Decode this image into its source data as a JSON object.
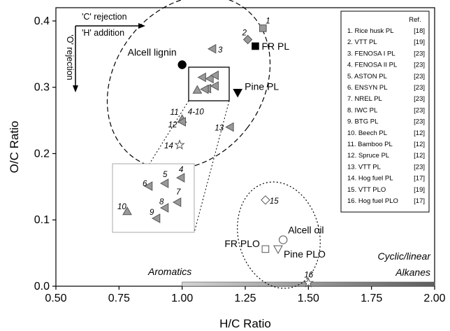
{
  "chart_data": {
    "type": "scatter",
    "xlabel": "H/C Ratio",
    "ylabel": "O/C Ratio",
    "xlim": [
      0.5,
      2.0
    ],
    "ylim": [
      0.0,
      0.42
    ],
    "xticks": [
      "0.50",
      "0.75",
      "1.00",
      "1.25",
      "1.50",
      "1.75",
      "2.00"
    ],
    "xtick_values": [
      0.5,
      0.75,
      1.0,
      1.25,
      1.5,
      1.75,
      2.0
    ],
    "yticks": [
      "0.0",
      "0.1",
      "0.2",
      "0.3",
      "0.4"
    ],
    "ytick_values": [
      0.0,
      0.1,
      0.2,
      0.3,
      0.4
    ],
    "grid": false,
    "points": [
      {
        "label": "1",
        "x": 1.32,
        "y": 0.389,
        "marker": "square",
        "fill": "#999999"
      },
      {
        "label": "2",
        "x": 1.26,
        "y": 0.372,
        "marker": "diamond",
        "fill": "#999999"
      },
      {
        "label": "3",
        "x": 1.12,
        "y": 0.358,
        "marker": "triangle-left",
        "fill": "#999999"
      },
      {
        "label": "11",
        "x": 1.0,
        "y": 0.252,
        "marker": "triangle-up",
        "fill": "#999999"
      },
      {
        "label": "12",
        "x": 1.0,
        "y": 0.248,
        "marker": "triangle-left",
        "fill": "#999999"
      },
      {
        "label": "13",
        "x": 1.19,
        "y": 0.24,
        "marker": "triangle-left",
        "fill": "#999999"
      },
      {
        "label": "14",
        "x": 0.99,
        "y": 0.213,
        "marker": "star",
        "fill": "#ffffff"
      },
      {
        "label": "15",
        "x": 1.33,
        "y": 0.13,
        "marker": "diamond",
        "fill": "#ffffff"
      },
      {
        "label": "16",
        "x": 1.5,
        "y": 0.005,
        "marker": "star",
        "fill": "#ffffff"
      },
      {
        "label": "4-10",
        "x": 1.1,
        "y": 0.298,
        "marker": "triangle-left",
        "fill": "#999999"
      },
      {
        "label": "",
        "x": 1.06,
        "y": 0.296,
        "marker": "triangle-up",
        "fill": "#999999"
      },
      {
        "label": "",
        "x": 1.09,
        "y": 0.297,
        "marker": "triangle-left",
        "fill": "#999999"
      },
      {
        "label": "",
        "x": 1.13,
        "y": 0.302,
        "marker": "triangle-left",
        "fill": "#999999"
      },
      {
        "label": "",
        "x": 1.11,
        "y": 0.313,
        "marker": "triangle-left",
        "fill": "#999999"
      },
      {
        "label": "",
        "x": 1.08,
        "y": 0.315,
        "marker": "triangle-left",
        "fill": "#999999"
      },
      {
        "label": "",
        "x": 1.13,
        "y": 0.318,
        "marker": "triangle-left",
        "fill": "#999999"
      }
    ],
    "named_points": [
      {
        "label": "FR PL",
        "x": 1.29,
        "y": 0.362,
        "marker": "square",
        "fill": "#000000"
      },
      {
        "label": "Alcell lignin",
        "x": 1.0,
        "y": 0.334,
        "marker": "circle",
        "fill": "#000000"
      },
      {
        "label": "Pine PL",
        "x": 1.22,
        "y": 0.292,
        "marker": "triangle-down",
        "fill": "#000000"
      },
      {
        "label": "Alcell oil",
        "x": 1.4,
        "y": 0.07,
        "marker": "circle",
        "fill": "#ffffff"
      },
      {
        "label": "FR PLO",
        "x": 1.33,
        "y": 0.056,
        "marker": "square",
        "fill": "#ffffff"
      },
      {
        "label": "Pine PLO",
        "x": 1.38,
        "y": 0.056,
        "marker": "triangle-down",
        "fill": "#ffffff"
      }
    ],
    "inset_points": [
      {
        "label": "4",
        "marker": "triangle-left",
        "fill": "#999999"
      },
      {
        "label": "5",
        "marker": "triangle-left",
        "fill": "#999999"
      },
      {
        "label": "6",
        "marker": "triangle-left",
        "fill": "#999999"
      },
      {
        "label": "7",
        "marker": "triangle-left",
        "fill": "#999999"
      },
      {
        "label": "8",
        "marker": "triangle-left",
        "fill": "#999999"
      },
      {
        "label": "9",
        "marker": "triangle-left",
        "fill": "#999999"
      },
      {
        "label": "10",
        "marker": "triangle-up",
        "fill": "#999999"
      }
    ],
    "arrows": {
      "c_rejection": "'C' rejection",
      "h_addition": "'H' addition",
      "o_rejection": "'O' rejection"
    },
    "regions": {
      "aromatics": "Aromatics",
      "cyclic_linear": "Cyclic/linear",
      "alkanes": "Alkanes",
      "bar_start": 1.0,
      "bar_end": 2.0
    },
    "legend": {
      "placement": "top-right",
      "header": "Ref.",
      "entries": [
        {
          "name": "1.  Rice husk PL",
          "ref": "[18]"
        },
        {
          "name": "2.  VTT PL",
          "ref": "[19]"
        },
        {
          "name": "3.  FENOSA I PL",
          "ref": "[23]"
        },
        {
          "name": "4.  FENOSA II PL",
          "ref": "[23]"
        },
        {
          "name": "5.  ASTON PL",
          "ref": "[23]"
        },
        {
          "name": "6.  ENSYN PL",
          "ref": "[23]"
        },
        {
          "name": "7.  NREL PL",
          "ref": "[23]"
        },
        {
          "name": "8.  IWC PL",
          "ref": "[23]"
        },
        {
          "name": "9.  BTG PL",
          "ref": "[23]"
        },
        {
          "name": "10.  Beech PL",
          "ref": "[12]"
        },
        {
          "name": "11.  Bamboo PL",
          "ref": "[12]"
        },
        {
          "name": "12.  Spruce PL",
          "ref": "[12]"
        },
        {
          "name": "13.  VTT PL",
          "ref": "[23]"
        },
        {
          "name": "14.  Hog fuel PL",
          "ref": "[17]"
        },
        {
          "name": "15.  VTT PLO",
          "ref": "[19]"
        },
        {
          "name": "16.  Hog fuel PLO",
          "ref": "[17]"
        }
      ]
    }
  }
}
